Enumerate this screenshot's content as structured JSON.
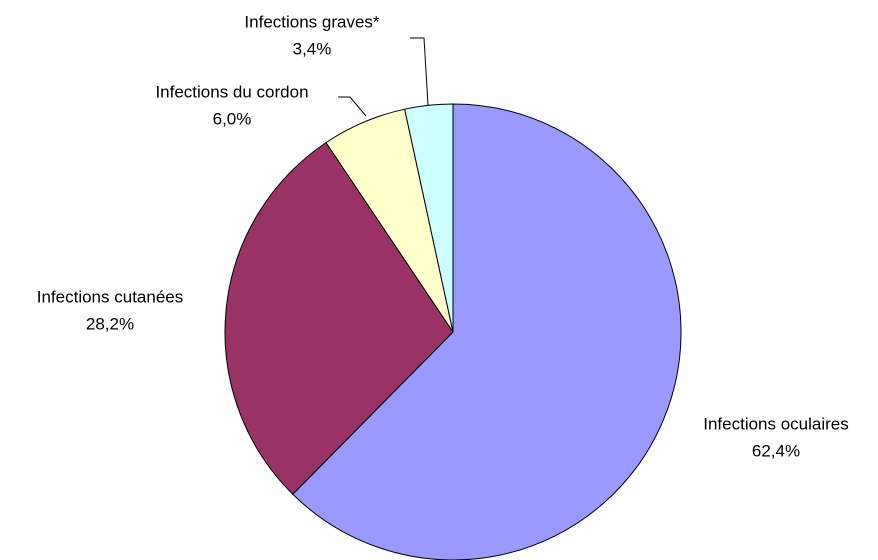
{
  "chart_data": {
    "type": "pie",
    "categories": [
      "Infections oculaires",
      "Infections cutanées",
      "Infections du cordon",
      "Infections graves*"
    ],
    "values": [
      62.4,
      28.2,
      6.0,
      3.4
    ],
    "value_labels": [
      "62,4%",
      "28,2%",
      "6,0%",
      "3,4%"
    ],
    "colors": [
      "#9999ff",
      "#993366",
      "#ffffcc",
      "#ccffff"
    ]
  }
}
